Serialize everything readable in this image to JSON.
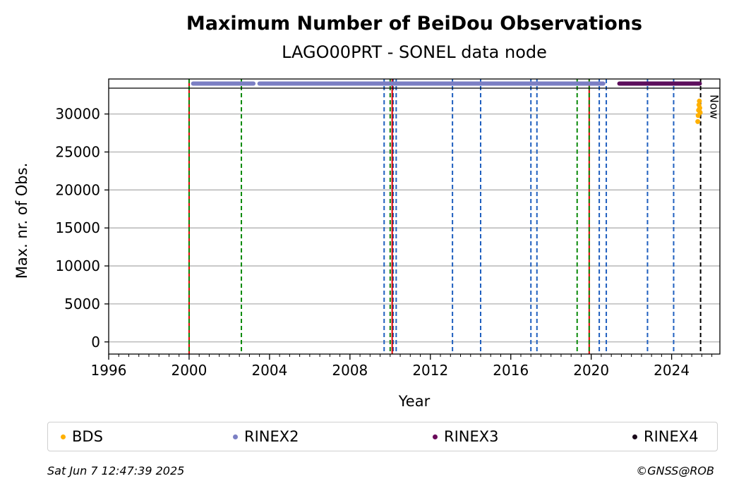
{
  "chart_data": {
    "type": "scatter",
    "title": "Maximum Number of BeiDou Observations",
    "subtitle": "LAGO00PRT - SONEL data node",
    "xlabel": "Year",
    "ylabel": "Max. nr. of Obs.",
    "xlim": [
      1996,
      2026.4
    ],
    "ylim": [
      -1600,
      33400
    ],
    "xticks": [
      1996,
      2000,
      2004,
      2008,
      2012,
      2016,
      2020,
      2024
    ],
    "xtick_labels": [
      "1996",
      "2000",
      "2004",
      "2008",
      "2012",
      "2016",
      "2020",
      "2024"
    ],
    "yticks": [
      0,
      5000,
      10000,
      15000,
      20000,
      25000,
      30000
    ],
    "ytick_labels": [
      "0",
      "5000",
      "10000",
      "15000",
      "20000",
      "25000",
      "30000"
    ],
    "grid": "horizontal",
    "now_label": "Now",
    "now_x": 2025.44,
    "series": [
      {
        "name": "BDS",
        "color": "#ffb000",
        "x": [
          2025.3,
          2025.32,
          2025.34,
          2025.36,
          2025.38,
          2025.4,
          2025.42
        ],
        "values": [
          29000,
          29800,
          30500,
          31200,
          31700,
          30800,
          30200
        ]
      }
    ],
    "availability": [
      {
        "name": "RINEX2",
        "color": "#7b7fc4",
        "spans": [
          [
            2000.2,
            2003.2
          ],
          [
            2003.5,
            2020.6
          ]
        ]
      },
      {
        "name": "RINEX3",
        "color": "#5c0e5c",
        "spans": [
          [
            2021.4,
            2025.4
          ]
        ]
      },
      {
        "name": "RINEX4",
        "color": "#1a0a1a",
        "spans": []
      }
    ],
    "events": {
      "red": [
        2000.0,
        2010.1,
        2019.9
      ],
      "green": [
        2000.0,
        2002.6,
        2010.0,
        2019.3,
        2019.9
      ],
      "blue": [
        2009.7,
        2010.15,
        2010.3,
        2013.1,
        2014.5,
        2017.0,
        2017.3,
        2020.4,
        2020.75,
        2022.8,
        2024.1
      ]
    },
    "legend": [
      "BDS",
      "RINEX2",
      "RINEX3",
      "RINEX4"
    ]
  },
  "legend": {
    "items": [
      {
        "label": "BDS",
        "color": "#ffb000"
      },
      {
        "label": "RINEX2",
        "color": "#7b7fc4"
      },
      {
        "label": "RINEX3",
        "color": "#6a0a5a"
      },
      {
        "label": "RINEX4",
        "color": "#1a0a1a"
      }
    ]
  },
  "footer": {
    "timestamp": "Sat Jun  7 12:47:39 2025",
    "copyright": "©GNSS@ROB"
  }
}
